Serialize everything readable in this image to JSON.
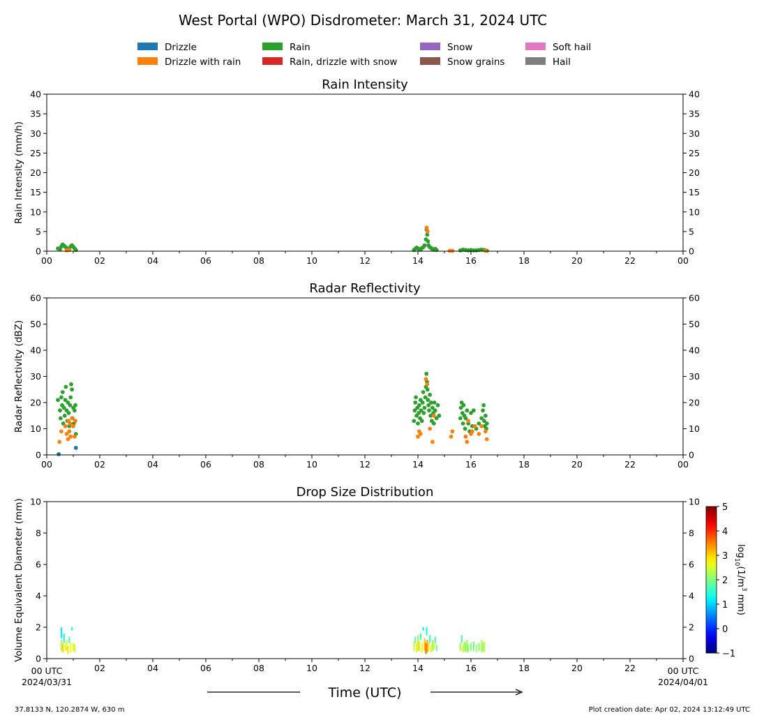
{
  "figure": {
    "title": "West Portal (WPO) Disdrometer: March 31, 2024 UTC",
    "footer_left": "37.8133 N, 120.2874 W, 630 m",
    "footer_right": "Plot creation date: Apr 02, 2024 13:12:49 UTC",
    "x_axis_title": "Time (UTC)",
    "x_start_label": "00 UTC",
    "x_start_date": "2024/03/31",
    "x_end_label": "00 UTC",
    "x_end_date": "2024/04/01"
  },
  "legend": [
    {
      "label": "Drizzle",
      "color": "#1f77b4"
    },
    {
      "label": "Drizzle with rain",
      "color": "#ff7f0e"
    },
    {
      "label": "Rain",
      "color": "#2ca02c"
    },
    {
      "label": "Rain, drizzle with snow",
      "color": "#d62728"
    },
    {
      "label": "Snow",
      "color": "#9467bd"
    },
    {
      "label": "Snow grains",
      "color": "#8c564b"
    },
    {
      "label": "Soft hail",
      "color": "#e377c2"
    },
    {
      "label": "Hail",
      "color": "#7f7f7f"
    }
  ],
  "chart_data": [
    {
      "type": "scatter",
      "title": "Rain Intensity",
      "ylabel": "Rain Intensity (mm/h)",
      "xlim": [
        0,
        24
      ],
      "ylim": [
        0,
        40
      ],
      "x_ticks": [
        "00",
        "02",
        "04",
        "06",
        "08",
        "10",
        "12",
        "14",
        "16",
        "18",
        "20",
        "22",
        "00"
      ],
      "y_ticks": [
        0,
        5,
        10,
        15,
        20,
        25,
        30,
        35,
        40
      ],
      "series": [
        {
          "name": "Rain",
          "color": "#2ca02c",
          "points": [
            [
              0.42,
              0.7
            ],
            [
              0.5,
              0.5
            ],
            [
              0.55,
              1.2
            ],
            [
              0.6,
              1.7
            ],
            [
              0.65,
              1.4
            ],
            [
              0.7,
              1.1
            ],
            [
              0.75,
              0.8
            ],
            [
              0.8,
              0.6
            ],
            [
              0.85,
              0.4
            ],
            [
              0.9,
              1.2
            ],
            [
              0.95,
              1.5
            ],
            [
              1.0,
              1.1
            ],
            [
              1.05,
              0.7
            ],
            [
              1.1,
              0.3
            ],
            [
              13.85,
              0.3
            ],
            [
              13.9,
              0.6
            ],
            [
              13.95,
              0.9
            ],
            [
              14.0,
              0.7
            ],
            [
              14.05,
              0.5
            ],
            [
              14.1,
              0.4
            ],
            [
              14.15,
              0.8
            ],
            [
              14.2,
              1.0
            ],
            [
              14.25,
              1.5
            ],
            [
              14.3,
              3.0
            ],
            [
              14.33,
              5.5
            ],
            [
              14.35,
              4.2
            ],
            [
              14.38,
              2.5
            ],
            [
              14.4,
              1.5
            ],
            [
              14.45,
              1.0
            ],
            [
              14.5,
              0.8
            ],
            [
              14.55,
              0.5
            ],
            [
              14.6,
              0.4
            ],
            [
              14.65,
              0.6
            ],
            [
              14.7,
              0.3
            ],
            [
              15.6,
              0.2
            ],
            [
              15.7,
              0.4
            ],
            [
              15.8,
              0.3
            ],
            [
              15.9,
              0.2
            ],
            [
              16.0,
              0.3
            ],
            [
              16.1,
              0.2
            ],
            [
              16.2,
              0.2
            ],
            [
              16.3,
              0.3
            ],
            [
              16.4,
              0.4
            ],
            [
              16.5,
              0.3
            ],
            [
              16.55,
              0.2
            ],
            [
              16.6,
              0.1
            ]
          ]
        },
        {
          "name": "Drizzle with rain",
          "color": "#ff7f0e",
          "points": [
            [
              0.75,
              0.2
            ],
            [
              0.85,
              0.3
            ],
            [
              14.33,
              6.0
            ],
            [
              14.36,
              5.0
            ],
            [
              15.2,
              0.1
            ],
            [
              15.3,
              0.1
            ],
            [
              16.55,
              0.1
            ]
          ]
        }
      ]
    },
    {
      "type": "scatter",
      "title": "Radar Reflectivity",
      "ylabel": "Radar Reflectivity (dBZ)",
      "xlim": [
        0,
        24
      ],
      "ylim": [
        0,
        60
      ],
      "x_ticks": [
        "00",
        "02",
        "04",
        "06",
        "08",
        "10",
        "12",
        "14",
        "16",
        "18",
        "20",
        "22",
        "00"
      ],
      "y_ticks": [
        0,
        10,
        20,
        30,
        40,
        50,
        60
      ],
      "series": [
        {
          "name": "Rain",
          "color": "#2ca02c",
          "points": [
            [
              0.42,
              21
            ],
            [
              0.5,
              17
            ],
            [
              0.52,
              14
            ],
            [
              0.55,
              22
            ],
            [
              0.58,
              19
            ],
            [
              0.6,
              24
            ],
            [
              0.62,
              12
            ],
            [
              0.65,
              18
            ],
            [
              0.68,
              15
            ],
            [
              0.7,
              21
            ],
            [
              0.72,
              26
            ],
            [
              0.75,
              17
            ],
            [
              0.78,
              13
            ],
            [
              0.8,
              20
            ],
            [
              0.83,
              16
            ],
            [
              0.85,
              11
            ],
            [
              0.88,
              19
            ],
            [
              0.9,
              22
            ],
            [
              0.92,
              27
            ],
            [
              0.95,
              25
            ],
            [
              0.97,
              14
            ],
            [
              1.0,
              18
            ],
            [
              1.02,
              12
            ],
            [
              1.05,
              17
            ],
            [
              1.08,
              19
            ],
            [
              1.1,
              8
            ],
            [
              13.85,
              13
            ],
            [
              13.88,
              17
            ],
            [
              13.9,
              20
            ],
            [
              13.92,
              22
            ],
            [
              13.95,
              15
            ],
            [
              13.98,
              18
            ],
            [
              14.0,
              12
            ],
            [
              14.03,
              16
            ],
            [
              14.05,
              19
            ],
            [
              14.08,
              14
            ],
            [
              14.1,
              21
            ],
            [
              14.12,
              17
            ],
            [
              14.15,
              13
            ],
            [
              14.18,
              20
            ],
            [
              14.2,
              24
            ],
            [
              14.22,
              16
            ],
            [
              14.25,
              18
            ],
            [
              14.28,
              22
            ],
            [
              14.3,
              26
            ],
            [
              14.32,
              31
            ],
            [
              14.34,
              28
            ],
            [
              14.36,
              25
            ],
            [
              14.38,
              21
            ],
            [
              14.4,
              19
            ],
            [
              14.42,
              17
            ],
            [
              14.45,
              23
            ],
            [
              14.48,
              15
            ],
            [
              14.5,
              20
            ],
            [
              14.52,
              13
            ],
            [
              14.55,
              18
            ],
            [
              14.58,
              16
            ],
            [
              14.6,
              12
            ],
            [
              14.62,
              20
            ],
            [
              14.65,
              17
            ],
            [
              14.7,
              14
            ],
            [
              14.75,
              19
            ],
            [
              14.8,
              15
            ],
            [
              15.6,
              14
            ],
            [
              15.62,
              18
            ],
            [
              15.65,
              20
            ],
            [
              15.68,
              16
            ],
            [
              15.7,
              12
            ],
            [
              15.72,
              19
            ],
            [
              15.75,
              15
            ],
            [
              15.78,
              10
            ],
            [
              15.8,
              14
            ],
            [
              15.85,
              17
            ],
            [
              15.9,
              12
            ],
            [
              15.95,
              9
            ],
            [
              16.0,
              16
            ],
            [
              16.05,
              11
            ],
            [
              16.1,
              17
            ],
            [
              16.2,
              10
            ],
            [
              16.3,
              12
            ],
            [
              16.4,
              14
            ],
            [
              16.45,
              17
            ],
            [
              16.48,
              19
            ],
            [
              16.5,
              13
            ],
            [
              16.52,
              11
            ],
            [
              16.55,
              15
            ],
            [
              16.58,
              10
            ],
            [
              16.6,
              12
            ]
          ]
        },
        {
          "name": "Drizzle with rain",
          "color": "#ff7f0e",
          "points": [
            [
              0.48,
              5
            ],
            [
              0.55,
              9
            ],
            [
              0.7,
              11
            ],
            [
              0.75,
              8
            ],
            [
              0.8,
              6
            ],
            [
              0.82,
              13
            ],
            [
              0.85,
              9
            ],
            [
              0.88,
              12
            ],
            [
              0.9,
              7
            ],
            [
              0.95,
              14
            ],
            [
              1.0,
              11
            ],
            [
              1.05,
              7
            ],
            [
              1.08,
              13
            ],
            [
              14.0,
              7
            ],
            [
              14.05,
              9
            ],
            [
              14.1,
              8
            ],
            [
              14.3,
              29
            ],
            [
              14.35,
              27
            ],
            [
              14.45,
              10
            ],
            [
              14.55,
              5
            ],
            [
              14.6,
              15
            ],
            [
              15.25,
              7
            ],
            [
              15.3,
              9
            ],
            [
              15.8,
              7
            ],
            [
              15.85,
              5
            ],
            [
              15.9,
              13
            ],
            [
              16.0,
              8
            ],
            [
              16.05,
              9
            ],
            [
              16.15,
              11
            ],
            [
              16.3,
              8
            ],
            [
              16.4,
              11
            ],
            [
              16.55,
              9
            ],
            [
              16.6,
              6
            ]
          ]
        },
        {
          "name": "Drizzle",
          "color": "#1f77b4",
          "points": [
            [
              0.45,
              0.3
            ],
            [
              1.1,
              2.7
            ]
          ]
        }
      ]
    },
    {
      "type": "heatmap",
      "title": "Drop Size Distribution",
      "ylabel": "Volume Equivalent Diameter (mm)",
      "xlabel": "Time (UTC)",
      "xlim": [
        0,
        24
      ],
      "ylim": [
        0,
        10
      ],
      "x_ticks": [
        "00",
        "02",
        "04",
        "06",
        "08",
        "10",
        "12",
        "14",
        "16",
        "18",
        "20",
        "22",
        "00"
      ],
      "y_ticks": [
        0,
        2,
        4,
        6,
        8,
        10
      ],
      "colorbar": {
        "label_main": "log",
        "label_sub": "10",
        "label_rest": "(1/m",
        "label_sup": "3",
        "label_end": " mm)",
        "ticks": [
          -1,
          0,
          1,
          2,
          3,
          4,
          5
        ],
        "range": [
          -1,
          5
        ]
      },
      "cells": [
        [
          0.55,
          0.5,
          1.2,
          2.3
        ],
        [
          0.55,
          1.3,
          2.0,
          1.2
        ],
        [
          0.6,
          0.4,
          1.0,
          3.0
        ],
        [
          0.65,
          1.0,
          1.6,
          1.5
        ],
        [
          0.7,
          0.5,
          0.9,
          2.8
        ],
        [
          0.75,
          0.5,
          1.2,
          2.5
        ],
        [
          0.8,
          0.3,
          0.8,
          2.9
        ],
        [
          0.85,
          1.0,
          1.4,
          1.6
        ],
        [
          0.9,
          0.4,
          1.0,
          2.7
        ],
        [
          0.95,
          1.8,
          2.0,
          1.3
        ],
        [
          1.0,
          0.5,
          1.0,
          2.6
        ],
        [
          1.05,
          0.4,
          0.9,
          2.4
        ],
        [
          13.85,
          0.5,
          1.1,
          2.4
        ],
        [
          13.9,
          1.0,
          1.4,
          1.8
        ],
        [
          13.95,
          0.4,
          1.0,
          2.8
        ],
        [
          14.0,
          0.5,
          1.5,
          2.2
        ],
        [
          14.05,
          0.5,
          1.1,
          2.9
        ],
        [
          14.1,
          1.2,
          1.6,
          1.5
        ],
        [
          14.15,
          0.4,
          1.0,
          2.7
        ],
        [
          14.2,
          1.8,
          2.0,
          1.2
        ],
        [
          14.25,
          0.5,
          1.3,
          3.1
        ],
        [
          14.3,
          0.3,
          1.0,
          3.6
        ],
        [
          14.33,
          1.5,
          2.0,
          1.4
        ],
        [
          14.35,
          0.4,
          1.2,
          3.3
        ],
        [
          14.4,
          0.5,
          1.0,
          2.9
        ],
        [
          14.45,
          1.0,
          1.5,
          1.6
        ],
        [
          14.5,
          0.4,
          0.9,
          2.6
        ],
        [
          14.55,
          0.5,
          1.2,
          2.2
        ],
        [
          14.6,
          0.6,
          1.0,
          2.4
        ],
        [
          14.65,
          1.0,
          1.4,
          1.7
        ],
        [
          14.7,
          0.5,
          0.9,
          2.0
        ],
        [
          15.6,
          0.5,
          1.0,
          2.3
        ],
        [
          15.65,
          1.0,
          1.5,
          1.7
        ],
        [
          15.7,
          0.4,
          0.9,
          2.5
        ],
        [
          15.75,
          0.5,
          1.1,
          2.2
        ],
        [
          15.8,
          0.4,
          1.0,
          2.0
        ],
        [
          15.85,
          0.5,
          1.2,
          2.3
        ],
        [
          15.9,
          0.4,
          0.9,
          2.1
        ],
        [
          16.0,
          0.5,
          1.0,
          2.0
        ],
        [
          16.1,
          0.5,
          1.1,
          1.9
        ],
        [
          16.2,
          0.4,
          0.9,
          2.2
        ],
        [
          16.3,
          0.5,
          1.0,
          2.1
        ],
        [
          16.4,
          0.4,
          1.2,
          2.3
        ],
        [
          16.45,
          0.5,
          1.0,
          2.0
        ],
        [
          16.5,
          0.4,
          1.1,
          2.4
        ]
      ]
    }
  ]
}
